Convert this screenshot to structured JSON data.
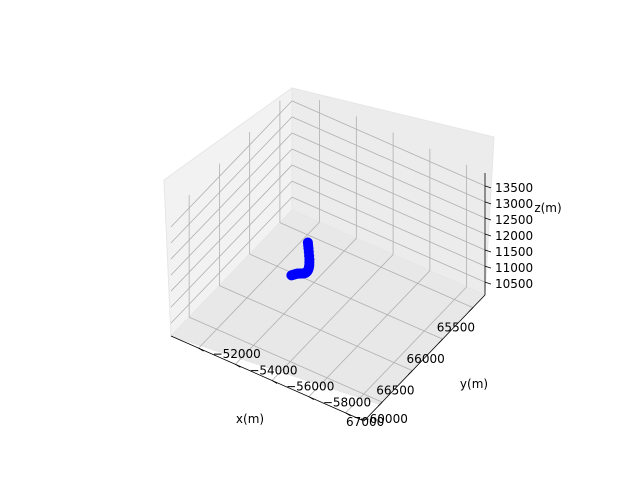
{
  "chart_data": {
    "type": "scatter",
    "projection": "3d",
    "title": "",
    "xlabel": "x(m)",
    "ylabel": "y(m)",
    "zlabel": "z(m)",
    "grid": true,
    "legend": "none",
    "marker_color": "#0000ff",
    "pane_color": "#f2f2f2",
    "xlim": [
      65300,
      67300
    ],
    "ylim": [
      -61000,
      -50500
    ],
    "zlim": [
      10100,
      13900
    ],
    "x_ticks": [
      {
        "value": 65500,
        "label": "65500"
      },
      {
        "value": 66000,
        "label": "66000"
      },
      {
        "value": 66500,
        "label": "66500"
      },
      {
        "value": 67000,
        "label": "67000"
      }
    ],
    "y_ticks": [
      {
        "value": -52000,
        "label": "−52000"
      },
      {
        "value": -54000,
        "label": "−54000"
      },
      {
        "value": -56000,
        "label": "−56000"
      },
      {
        "value": -58000,
        "label": "−58000"
      },
      {
        "value": -60000,
        "label": "−60000"
      }
    ],
    "z_ticks": [
      {
        "value": 10500,
        "label": "10500"
      },
      {
        "value": 11000,
        "label": "11000"
      },
      {
        "value": 11500,
        "label": "11500"
      },
      {
        "value": 12000,
        "label": "12000"
      },
      {
        "value": 12500,
        "label": "12500"
      },
      {
        "value": 13000,
        "label": "13000"
      },
      {
        "value": 13500,
        "label": "13500"
      }
    ],
    "series": [
      {
        "x": [
          66025,
          66035,
          66045,
          66055,
          66068,
          66082,
          66098,
          66114,
          66132,
          66150,
          66170,
          66190,
          66210,
          66230,
          66250,
          66270,
          66290,
          66310,
          66330,
          66350,
          66370,
          66390,
          66410,
          66430,
          66450,
          66470,
          66490
        ],
        "y": [
          -53750,
          -53800,
          -53850,
          -53900,
          -53960,
          -54020,
          -54070,
          -54120,
          -54160,
          -54195,
          -54225,
          -54250,
          -54270,
          -54285,
          -54300,
          -54310,
          -54320,
          -54330,
          -54340,
          -54350,
          -54355,
          -54360,
          -54365,
          -54370,
          -54375,
          -54380,
          -54385
        ],
        "z": [
          11330,
          11270,
          11210,
          11130,
          11050,
          10980,
          10930,
          10890,
          10870,
          10860,
          10860,
          10870,
          10890,
          10920,
          10950,
          10990,
          11030,
          11070,
          11110,
          11150,
          11190,
          11230,
          11260,
          11290,
          11320,
          11350,
          11380
        ]
      }
    ]
  }
}
